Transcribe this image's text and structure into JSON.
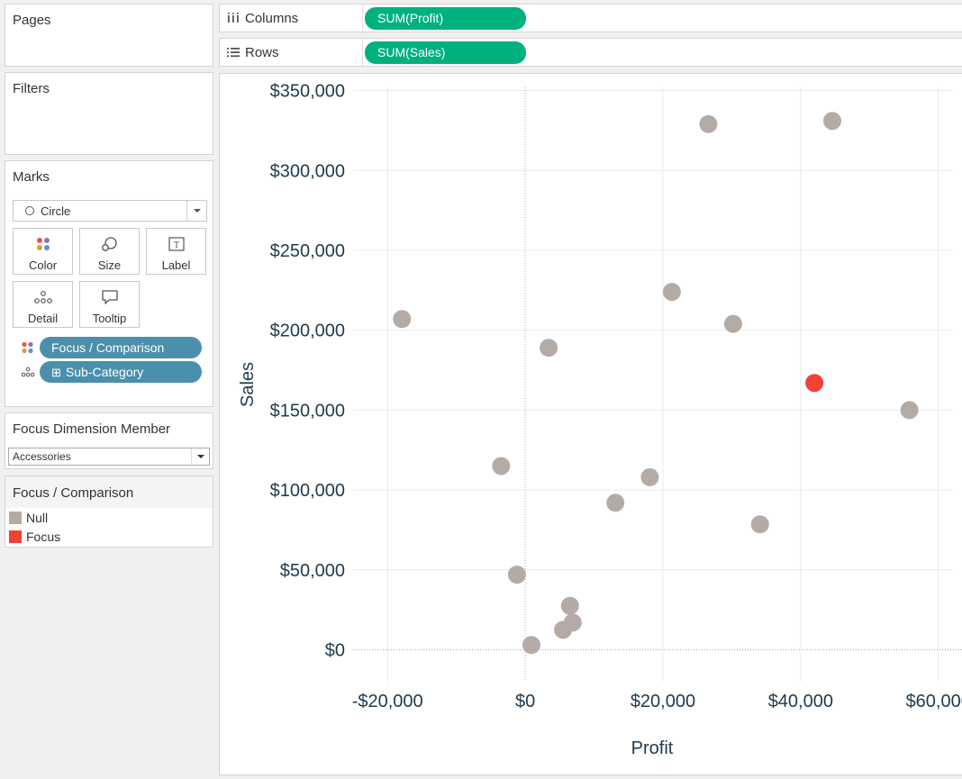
{
  "cards": {
    "pages": {
      "title": "Pages"
    },
    "filters": {
      "title": "Filters"
    },
    "marks": {
      "title": "Marks",
      "mark_type": "Circle",
      "buttons": {
        "color": "Color",
        "size": "Size",
        "label": "Label",
        "detail": "Detail",
        "tooltip": "Tooltip"
      },
      "pills": [
        {
          "label": "Focus / Comparison",
          "icon": "color-dots-icon"
        },
        {
          "label": "Sub-Category",
          "icon": "detail-dots-icon",
          "expand_glyph": "⊞"
        }
      ]
    },
    "focus_dimension": {
      "title": "Focus Dimension Member",
      "value": "Accessories"
    },
    "legend": {
      "title": "Focus / Comparison",
      "items": [
        {
          "label": "Null",
          "color": "#b5aba6"
        },
        {
          "label": "Focus",
          "color": "#f24236"
        }
      ]
    }
  },
  "shelves": {
    "columns": {
      "label": "Columns",
      "pill": "SUM(Profit)",
      "icon": "columns-icon"
    },
    "rows": {
      "label": "Rows",
      "pill": "SUM(Sales)",
      "icon": "rows-icon"
    }
  },
  "colors": {
    "pill_measure": "#00b180",
    "pill_dimension": "#4a90ad",
    "null": "#b5aba6",
    "focus": "#f24236",
    "axis_text": "#1f3a4c"
  },
  "chart_data": {
    "type": "scatter",
    "xlabel": "Profit",
    "ylabel": "Sales",
    "xlim": [
      -25000,
      62000
    ],
    "ylim": [
      -20000,
      352000
    ],
    "x_ticks": [
      -20000,
      0,
      20000,
      40000,
      60000
    ],
    "x_tick_labels": [
      "-$20,000",
      "$0",
      "$20,000",
      "$40,000",
      "$60,000"
    ],
    "y_ticks": [
      0,
      50000,
      100000,
      150000,
      200000,
      250000,
      300000,
      350000
    ],
    "y_tick_labels": [
      "$0",
      "$50,000",
      "$100,000",
      "$150,000",
      "$200,000",
      "$250,000",
      "$300,000",
      "$350,000"
    ],
    "grid": true,
    "zero_lines": true,
    "series": [
      {
        "category": "Null",
        "color": "#b5aba6",
        "points": [
          [
            26600,
            329000
          ],
          [
            44600,
            331000
          ],
          [
            -17900,
            207000
          ],
          [
            3400,
            189000
          ],
          [
            21300,
            224000
          ],
          [
            30200,
            204000
          ],
          [
            55800,
            150000
          ],
          [
            -3500,
            115000
          ],
          [
            18100,
            108000
          ],
          [
            13100,
            92000
          ],
          [
            34100,
            78500
          ],
          [
            -1200,
            47000
          ],
          [
            6500,
            27500
          ],
          [
            6900,
            17000
          ],
          [
            5500,
            12500
          ],
          [
            900,
            3000
          ]
        ]
      },
      {
        "category": "Focus",
        "color": "#f24236",
        "points": [
          [
            42000,
            167000
          ]
        ]
      }
    ]
  }
}
